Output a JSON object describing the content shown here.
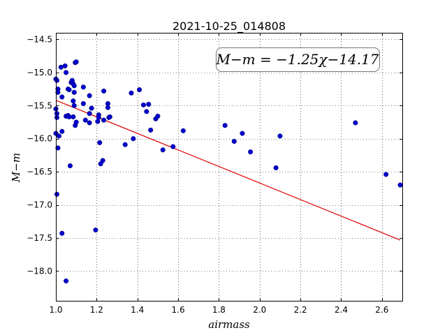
{
  "chart_data": {
    "type": "scatter",
    "title": "2021-10-25_014808",
    "xlabel": "airmass",
    "ylabel": "M−m",
    "xlim": [
      1.0,
      2.7
    ],
    "ylim": [
      -18.45,
      -14.4
    ],
    "x_ticks": [
      "1.0",
      "1.2",
      "1.4",
      "1.6",
      "1.8",
      "2.0",
      "2.2",
      "2.4",
      "2.6"
    ],
    "y_ticks": [
      "−14.5",
      "−15.0",
      "−15.5",
      "−16.0",
      "−16.5",
      "−17.0",
      "−17.5",
      "−18.0"
    ],
    "grid": true,
    "annotation": "M−m = −1.25χ−14.17",
    "point_color": "#0000cc",
    "fit_color": "#dd0000",
    "fit_line": {
      "slope": -1.25,
      "intercept": -14.17,
      "x_range": [
        1.0,
        2.69
      ]
    },
    "points": [
      [
        1.0,
        -15.1
      ],
      [
        1.005,
        -15.12
      ],
      [
        1.01,
        -15.25
      ],
      [
        1.01,
        -15.3
      ],
      [
        1.0,
        -15.55
      ],
      [
        1.005,
        -15.62
      ],
      [
        1.005,
        -15.68
      ],
      [
        1.0,
        -15.92
      ],
      [
        1.015,
        -15.96
      ],
      [
        1.01,
        -16.14
      ],
      [
        1.005,
        -16.84
      ],
      [
        1.025,
        -14.92
      ],
      [
        1.045,
        -14.9
      ],
      [
        1.05,
        -15.0
      ],
      [
        1.03,
        -15.37
      ],
      [
        1.05,
        -15.66
      ],
      [
        1.06,
        -15.65
      ],
      [
        1.03,
        -15.89
      ],
      [
        1.06,
        -15.25
      ],
      [
        1.065,
        -15.26
      ],
      [
        1.065,
        -15.67
      ],
      [
        1.07,
        -16.41
      ],
      [
        1.03,
        -17.43
      ],
      [
        1.05,
        -18.15
      ],
      [
        1.075,
        -15.15
      ],
      [
        1.08,
        -15.12
      ],
      [
        1.085,
        -15.17
      ],
      [
        1.09,
        -15.2
      ],
      [
        1.09,
        -15.3
      ],
      [
        1.095,
        -14.85
      ],
      [
        1.1,
        -14.84
      ],
      [
        1.085,
        -15.43
      ],
      [
        1.09,
        -15.5
      ],
      [
        1.085,
        -15.67
      ],
      [
        1.095,
        -15.8
      ],
      [
        1.1,
        -15.75
      ],
      [
        1.135,
        -15.22
      ],
      [
        1.135,
        -15.47
      ],
      [
        1.145,
        -15.72
      ],
      [
        1.165,
        -15.35
      ],
      [
        1.165,
        -15.62
      ],
      [
        1.165,
        -15.76
      ],
      [
        1.175,
        -15.54
      ],
      [
        1.205,
        -15.74
      ],
      [
        1.21,
        -15.64
      ],
      [
        1.21,
        -15.68
      ],
      [
        1.215,
        -16.06
      ],
      [
        1.22,
        -16.38
      ],
      [
        1.23,
        -16.33
      ],
      [
        1.235,
        -15.72
      ],
      [
        1.235,
        -15.28
      ],
      [
        1.255,
        -15.47
      ],
      [
        1.255,
        -15.53
      ],
      [
        1.26,
        -15.68
      ],
      [
        1.265,
        -15.67
      ],
      [
        1.195,
        -17.38
      ],
      [
        1.34,
        -16.09
      ],
      [
        1.37,
        -15.31
      ],
      [
        1.38,
        -16.0
      ],
      [
        1.41,
        -15.26
      ],
      [
        1.43,
        -15.49
      ],
      [
        1.445,
        -15.59
      ],
      [
        1.455,
        -15.48
      ],
      [
        1.465,
        -15.87
      ],
      [
        1.49,
        -15.7
      ],
      [
        1.5,
        -15.66
      ],
      [
        1.525,
        -16.17
      ],
      [
        1.575,
        -16.12
      ],
      [
        1.625,
        -15.88
      ],
      [
        1.83,
        -15.8
      ],
      [
        1.875,
        -16.04
      ],
      [
        1.915,
        -15.92
      ],
      [
        1.955,
        -16.2
      ],
      [
        2.08,
        -16.44
      ],
      [
        2.1,
        -15.96
      ],
      [
        2.47,
        -15.76
      ],
      [
        2.62,
        -16.54
      ],
      [
        2.69,
        -16.7
      ]
    ]
  }
}
